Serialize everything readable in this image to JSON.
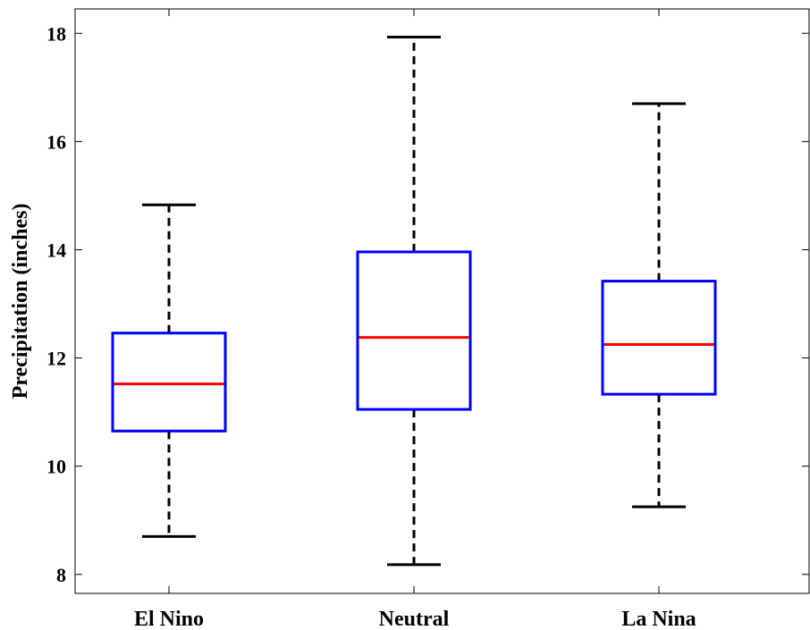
{
  "chart_data": {
    "type": "boxplot",
    "title": "",
    "xlabel": "",
    "ylabel": "Precipitation (inches)",
    "ylim": [
      7.65,
      18.45
    ],
    "yticks": [
      8,
      10,
      12,
      14,
      16,
      18
    ],
    "grid": false,
    "categories": [
      "El Nino",
      "Neutral",
      "La Nina"
    ],
    "boxes": [
      {
        "category": "El Nino",
        "min": 8.7,
        "q1": 10.65,
        "median": 11.52,
        "q3": 12.46,
        "max": 14.83
      },
      {
        "category": "Neutral",
        "min": 8.18,
        "q1": 11.05,
        "median": 12.38,
        "q3": 13.96,
        "max": 17.93
      },
      {
        "category": "La Nina",
        "min": 9.25,
        "q1": 11.33,
        "median": 12.25,
        "q3": 13.42,
        "max": 16.7
      }
    ],
    "colors": {
      "box": "#0000ff",
      "median": "#ff0000",
      "whisker": "#000000",
      "axis": "#000000"
    }
  }
}
